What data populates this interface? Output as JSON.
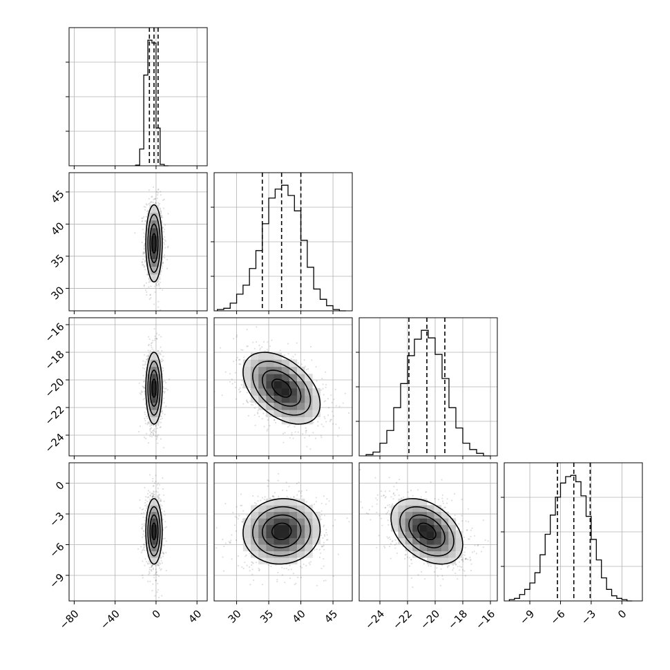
{
  "chart_data": {
    "type": "corner",
    "parameters": [
      {
        "range": [
          -85,
          50
        ],
        "ticks": [
          -80,
          -40,
          0,
          40
        ],
        "tick_labels": [
          "−80",
          "−40",
          "0",
          "40"
        ],
        "mean": -2,
        "sd": 4,
        "quantiles": [
          -6.5,
          -2,
          2
        ]
      },
      {
        "range": [
          26.5,
          48
        ],
        "ticks": [
          30,
          35,
          40,
          45
        ],
        "tick_labels": [
          "30",
          "35",
          "40",
          "45"
        ],
        "mean": 37,
        "sd": 3,
        "quantiles": [
          34,
          37,
          40
        ]
      },
      {
        "range": [
          -25.5,
          -15.5
        ],
        "ticks": [
          -24,
          -22,
          -20,
          -18,
          -16
        ],
        "tick_labels": [
          "−24",
          "−22",
          "−20",
          "−18",
          "−16"
        ],
        "mean": -20.6,
        "sd": 1.3,
        "quantiles": [
          -21.9,
          -20.6,
          -19.3
        ]
      },
      {
        "range": [
          -11.5,
          2
        ],
        "ticks": [
          -9,
          -6,
          -3,
          0
        ],
        "tick_labels": [
          "−9",
          "−6",
          "−3",
          "0"
        ],
        "mean": -4.7,
        "sd": 1.6,
        "quantiles": [
          -6.3,
          -4.7,
          -3.1
        ]
      }
    ],
    "histograms": [
      {
        "bin_edges": [
          -20,
          -16,
          -12,
          -8,
          -4,
          0,
          4,
          8,
          12
        ],
        "counts": [
          0.005,
          0.12,
          0.65,
          0.9,
          0.88,
          0.27,
          0.01,
          0.0
        ]
      },
      {
        "bin_edges": [
          27,
          28,
          29,
          30,
          31,
          32,
          33,
          34,
          35,
          36,
          37,
          38,
          39,
          40,
          41,
          42,
          43,
          44,
          45,
          46,
          47
        ],
        "counts": [
          0.01,
          0.02,
          0.06,
          0.13,
          0.2,
          0.33,
          0.47,
          0.68,
          0.88,
          0.95,
          0.98,
          0.9,
          0.78,
          0.55,
          0.34,
          0.17,
          0.09,
          0.04,
          0.01,
          0.0
        ]
      },
      {
        "bin_edges": [
          -25,
          -24.5,
          -24,
          -23.5,
          -23,
          -22.5,
          -22,
          -21.5,
          -21,
          -20.5,
          -20,
          -19.5,
          -19,
          -18.5,
          -18,
          -17.5,
          -17,
          -16.5,
          -16
        ],
        "counts": [
          0.01,
          0.03,
          0.1,
          0.2,
          0.38,
          0.57,
          0.79,
          0.92,
          0.99,
          0.93,
          0.8,
          0.61,
          0.38,
          0.22,
          0.1,
          0.05,
          0.02,
          0.0
        ]
      },
      {
        "bin_edges": [
          -11,
          -10.5,
          -10,
          -9.5,
          -9,
          -8.5,
          -8,
          -7.5,
          -7,
          -6.5,
          -6,
          -5.5,
          -5,
          -4.5,
          -4,
          -3.5,
          -3,
          -2.5,
          -2,
          -1.5,
          -1,
          -0.5,
          0,
          0.5,
          1
        ],
        "counts": [
          0.01,
          0.02,
          0.05,
          0.09,
          0.14,
          0.22,
          0.36,
          0.52,
          0.67,
          0.81,
          0.92,
          0.97,
          0.98,
          0.93,
          0.82,
          0.66,
          0.48,
          0.32,
          0.18,
          0.09,
          0.04,
          0.02,
          0.01,
          0.0
        ]
      }
    ],
    "correlations": [
      {
        "row": 1,
        "col": 0,
        "rho": 0.0
      },
      {
        "row": 2,
        "col": 0,
        "rho": 0.0
      },
      {
        "row": 2,
        "col": 1,
        "rho": -0.45
      },
      {
        "row": 3,
        "col": 0,
        "rho": 0.0
      },
      {
        "row": 3,
        "col": 1,
        "rho": 0.05
      },
      {
        "row": 3,
        "col": 2,
        "rho": -0.4
      }
    ],
    "contour_levels_sigma": [
      0.5,
      1.0,
      1.5,
      2.0
    ],
    "samples_per_panel": 900,
    "grid": true,
    "title": "",
    "xlabel": "",
    "ylabel": ""
  }
}
